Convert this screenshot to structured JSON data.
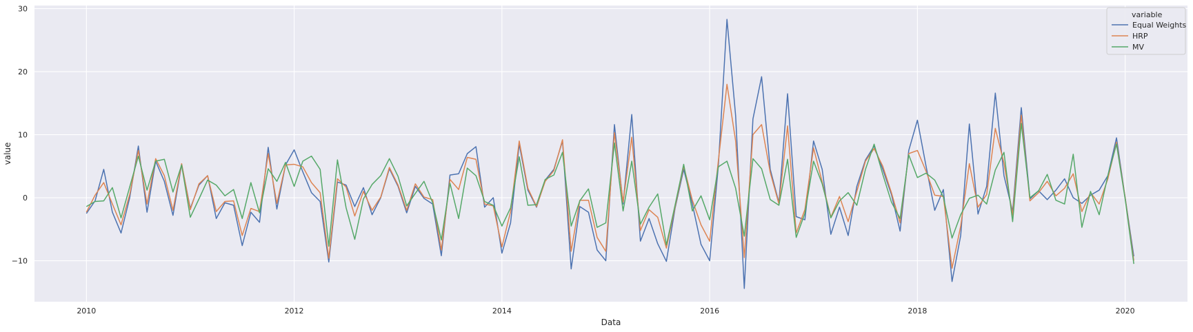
{
  "chart_data": {
    "type": "line",
    "xlabel": "Data",
    "ylabel": "value",
    "x_ticks": [
      "2010",
      "2012",
      "2014",
      "2016",
      "2018",
      "2020"
    ],
    "y_ticks": [
      "−10",
      "0",
      "10",
      "20",
      "30"
    ],
    "xlim": [
      2009.5,
      2020.6
    ],
    "ylim": [
      -16.5,
      30.5
    ],
    "grid": true,
    "legend": {
      "title": "variable",
      "placement": "top-right"
    },
    "x_start": 2010.0,
    "x_step_months": 1,
    "series": [
      {
        "name": "Equal Weights",
        "color": "#4c72b0",
        "values": [
          -2.5,
          -0.5,
          4.5,
          -2.3,
          -5.6,
          0.0,
          8.2,
          -2.3,
          5.8,
          2.6,
          -2.8,
          5.3,
          -1.7,
          2.0,
          3.5,
          -3.3,
          -0.8,
          -1.2,
          -7.6,
          -2.3,
          -3.9,
          8.0,
          -1.8,
          5.2,
          7.6,
          4.1,
          0.8,
          -0.6,
          -10.2,
          2.5,
          2.0,
          -1.4,
          1.6,
          -2.7,
          0.0,
          4.6,
          1.8,
          -2.4,
          1.8,
          -0.1,
          -1.0,
          -9.2,
          3.6,
          3.8,
          7.0,
          8.1,
          -1.5,
          0.0,
          -8.8,
          -4.0,
          8.5,
          1.2,
          -1.5,
          2.8,
          4.5,
          9.0,
          -11.3,
          -1.4,
          -2.3,
          -8.3,
          -10.0,
          11.6,
          -1.0,
          13.2,
          -6.9,
          -3.3,
          -7.3,
          -10.1,
          -1.7,
          4.5,
          -1.0,
          -7.4,
          -10.0,
          5.0,
          28.3,
          13.0,
          -14.4,
          12.5,
          19.2,
          4.5,
          -0.8,
          16.5,
          -3.0,
          -3.5,
          9.0,
          4.5,
          -5.8,
          -1.5,
          -6.0,
          1.8,
          6.0,
          8.2,
          4.5,
          0.5,
          -5.3,
          7.5,
          12.3,
          5.0,
          -2.0,
          1.3,
          -13.3,
          -6.0,
          11.7,
          -2.6,
          1.8,
          16.6,
          3.5,
          -2.2,
          14.3,
          -0.2,
          1.1,
          -0.3,
          1.2,
          3.0,
          0.0,
          -0.9,
          0.4,
          1.2,
          3.5,
          9.5,
          0.0,
          -9.3
        ]
      },
      {
        "name": "HRP",
        "color": "#dd8452",
        "values": [
          -2.3,
          0.4,
          2.4,
          -1.0,
          -4.3,
          0.5,
          7.5,
          -1.0,
          6.2,
          3.5,
          -2.0,
          5.4,
          -1.9,
          2.2,
          3.5,
          -2.2,
          -0.6,
          -0.5,
          -6.0,
          -1.7,
          -2.2,
          7.0,
          -0.9,
          5.2,
          5.3,
          4.9,
          2.4,
          0.8,
          -9.6,
          3.0,
          1.7,
          -2.9,
          1.0,
          -2.0,
          0.1,
          4.8,
          2.0,
          -2.0,
          2.2,
          0.1,
          -0.3,
          -8.3,
          2.9,
          1.3,
          6.4,
          6.1,
          -1.0,
          -1.3,
          -7.8,
          -2.2,
          9.0,
          1.5,
          -1.4,
          2.6,
          4.3,
          9.2,
          -8.5,
          -0.4,
          -0.4,
          -6.3,
          -8.5,
          10.3,
          -0.7,
          9.6,
          -5.2,
          -1.9,
          -3.1,
          -8.0,
          -1.5,
          5.0,
          -0.4,
          -4.3,
          -6.9,
          5.8,
          18.0,
          9.0,
          -9.5,
          10.0,
          11.6,
          4.0,
          -1.0,
          11.4,
          -5.6,
          -1.9,
          7.9,
          2.5,
          -3.1,
          0.2,
          -3.8,
          1.0,
          5.8,
          7.8,
          5.0,
          0.8,
          -4.0,
          7.0,
          7.5,
          4.2,
          0.4,
          0.2,
          -11.2,
          -4.5,
          5.4,
          -1.5,
          0.5,
          11.0,
          5.5,
          -2.8,
          13.1,
          -0.5,
          0.8,
          2.6,
          0.3,
          1.5,
          3.8,
          -2.2,
          0.8,
          -1.0,
          3.0,
          8.8,
          0.0,
          -10.0
        ]
      },
      {
        "name": "MV",
        "color": "#55a868",
        "values": [
          -1.4,
          -0.6,
          -0.5,
          1.6,
          -3.2,
          1.7,
          6.6,
          1.2,
          5.8,
          6.1,
          0.9,
          5.2,
          -3.1,
          -0.2,
          2.8,
          2.0,
          0.3,
          1.3,
          -3.3,
          2.4,
          -2.4,
          4.6,
          2.6,
          5.6,
          1.8,
          5.8,
          6.6,
          4.5,
          -7.7,
          6.0,
          -1.6,
          -6.6,
          -0.2,
          2.1,
          3.5,
          6.2,
          3.4,
          -1.3,
          0.7,
          2.6,
          -0.8,
          -6.7,
          2.3,
          -3.3,
          4.7,
          3.5,
          -0.6,
          -1.2,
          -4.5,
          -1.6,
          6.5,
          -1.2,
          -1.1,
          2.9,
          3.6,
          7.2,
          -4.5,
          -0.5,
          1.4,
          -4.7,
          -4.0,
          8.7,
          -2.1,
          5.8,
          -4.2,
          -1.5,
          0.6,
          -7.5,
          -1.2,
          5.3,
          -2.1,
          0.3,
          -3.5,
          4.9,
          5.8,
          1.5,
          -6.1,
          6.2,
          4.6,
          -0.3,
          -1.2,
          6.1,
          -6.3,
          -2.5,
          5.8,
          2.2,
          -3.2,
          -0.5,
          0.8,
          -1.2,
          4.5,
          8.5,
          3.7,
          -0.7,
          -3.3,
          6.8,
          3.2,
          3.9,
          2.8,
          0.1,
          -6.4,
          -2.7,
          -0.1,
          0.4,
          -1.0,
          4.4,
          7.2,
          -3.8,
          11.8,
          0.0,
          1.1,
          3.7,
          -0.4,
          -1.0,
          6.9,
          -4.7,
          1.0,
          -2.7,
          3.5,
          8.5,
          -0.2,
          -10.5
        ]
      }
    ]
  }
}
